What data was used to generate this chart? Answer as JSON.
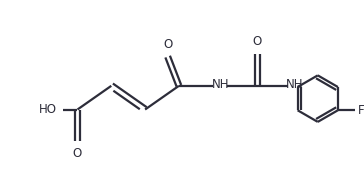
{
  "background_color": "#ffffff",
  "line_color": "#2d2d3a",
  "line_width": 1.6,
  "font_size": 8.5,
  "fig_width": 3.64,
  "fig_height": 1.89,
  "dpi": 100,
  "xlim": [
    0,
    9.5
  ],
  "ylim": [
    0,
    5.0
  ]
}
